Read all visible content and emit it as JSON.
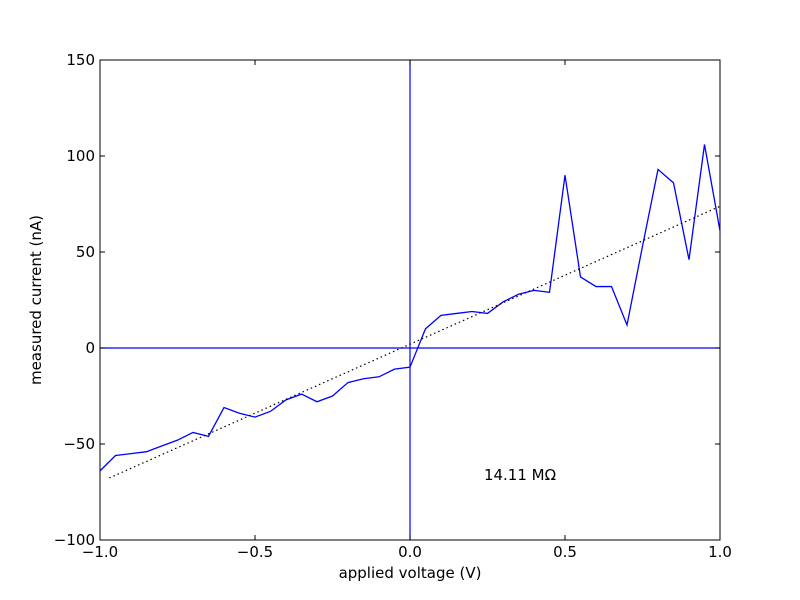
{
  "chart_data": {
    "type": "line",
    "title": "",
    "xlabel": "applied voltage (V)",
    "ylabel": "measured current (nA)",
    "xlim": [
      -1.0,
      1.0
    ],
    "ylim": [
      -100,
      150
    ],
    "x_ticks": [
      "−1.0",
      "−0.5",
      "0.0",
      "0.5",
      "1.0"
    ],
    "y_ticks": [
      "−100",
      "−50",
      "0",
      "50",
      "100",
      "150"
    ],
    "grid": false,
    "annotation": "14.11 MΩ",
    "series": [
      {
        "style": "solid",
        "color": "#0000ff",
        "x": [
          -1.0,
          -0.95,
          -0.9,
          -0.85,
          -0.8,
          -0.75,
          -0.7,
          -0.65,
          -0.6,
          -0.55,
          -0.5,
          -0.45,
          -0.4,
          -0.35,
          -0.3,
          -0.25,
          -0.2,
          -0.15,
          -0.1,
          -0.05,
          0.0,
          0.05,
          0.1,
          0.15,
          0.2,
          0.25,
          0.3,
          0.35,
          0.4,
          0.45,
          0.5,
          0.55,
          0.6,
          0.65,
          0.7,
          0.75,
          0.8,
          0.85,
          0.9,
          0.95,
          1.0
        ],
        "y": [
          -64,
          -56,
          -55,
          -54,
          -51,
          -48,
          -44,
          -46,
          -31,
          -34,
          -36,
          -33,
          -27,
          -24,
          -28,
          -25,
          -18,
          -16,
          -15,
          -11,
          -10,
          10,
          17,
          18,
          19,
          18,
          24,
          28,
          30,
          29,
          90,
          37,
          32,
          32,
          12,
          53,
          93,
          86,
          46,
          106,
          61
        ]
      },
      {
        "style": "dotted",
        "color": "#000000",
        "x": [
          -0.97,
          1.0
        ],
        "y": [
          -67.7,
          73.8
        ]
      }
    ],
    "reference_lines": {
      "x": 0.0,
      "y": 0.0,
      "color": "#0000ff"
    }
  }
}
